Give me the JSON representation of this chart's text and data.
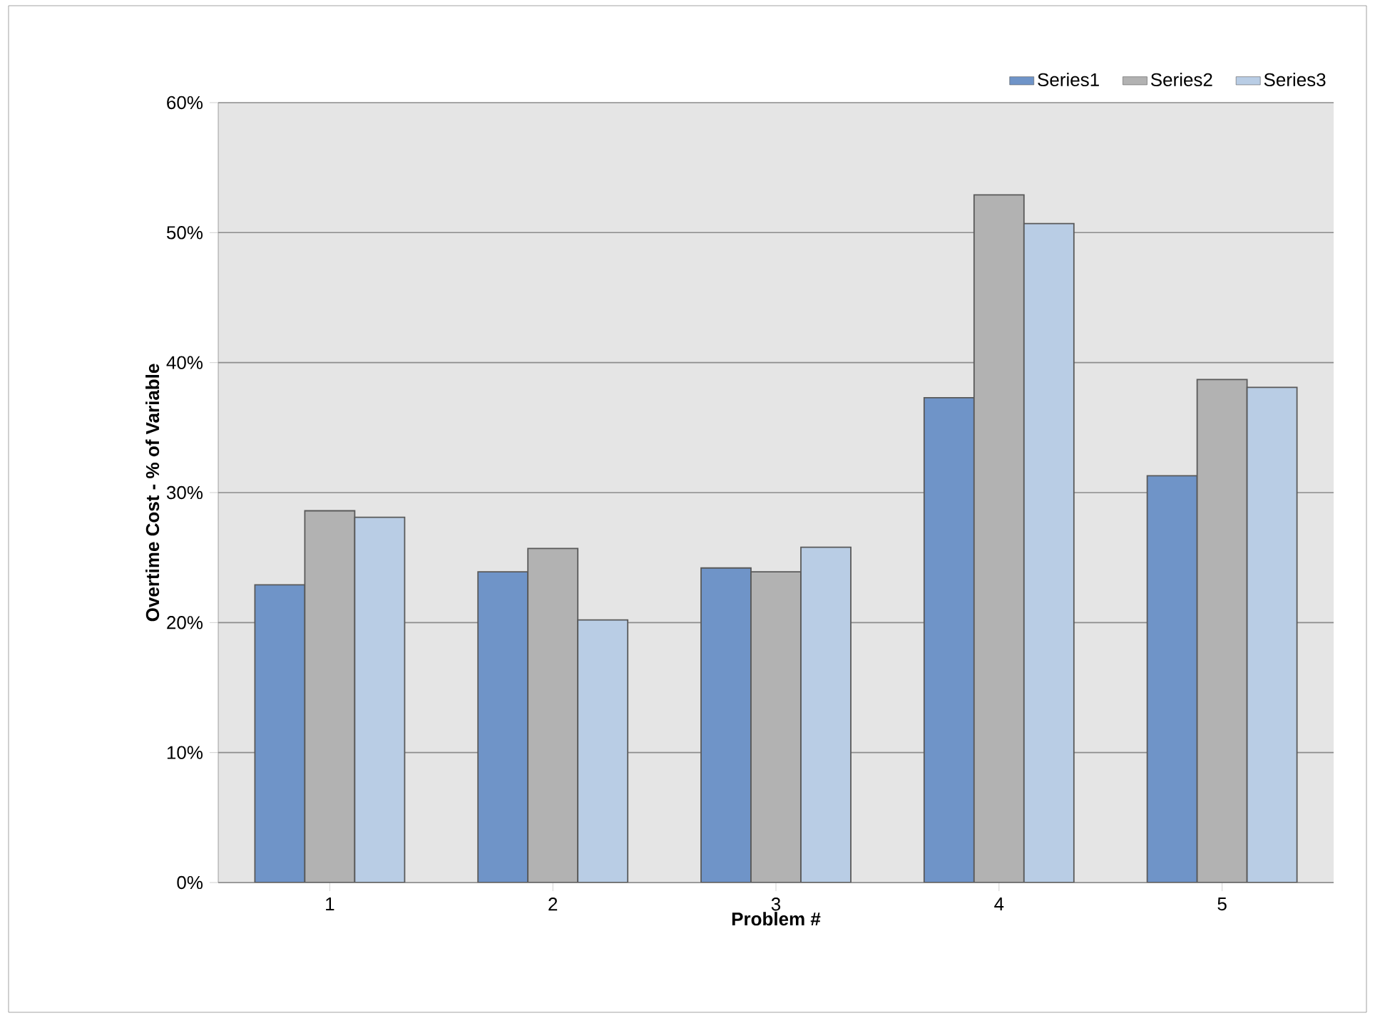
{
  "chart_data": {
    "type": "bar",
    "xlabel": "Problem #",
    "ylabel": "Overtime Cost - % of Variable",
    "categories": [
      "1",
      "2",
      "3",
      "4",
      "5"
    ],
    "series": [
      {
        "name": "Series1",
        "color": "#6f94c8",
        "values": [
          22.9,
          23.9,
          24.2,
          37.3,
          31.3
        ]
      },
      {
        "name": "Series2",
        "color": "#b2b2b2",
        "values": [
          28.6,
          25.7,
          23.9,
          52.9,
          38.7
        ]
      },
      {
        "name": "Series3",
        "color": "#b9cde5",
        "values": [
          28.1,
          20.2,
          25.8,
          50.7,
          38.1
        ]
      }
    ],
    "ylim": [
      0,
      60
    ],
    "yticks": [
      {
        "value": 0,
        "label": "0%"
      },
      {
        "value": 10,
        "label": "10%"
      },
      {
        "value": 20,
        "label": "20%"
      },
      {
        "value": 30,
        "label": "30%"
      },
      {
        "value": 40,
        "label": "40%"
      },
      {
        "value": 50,
        "label": "50%"
      },
      {
        "value": 60,
        "label": "60%"
      }
    ],
    "grid": "y",
    "legend": "top right"
  }
}
